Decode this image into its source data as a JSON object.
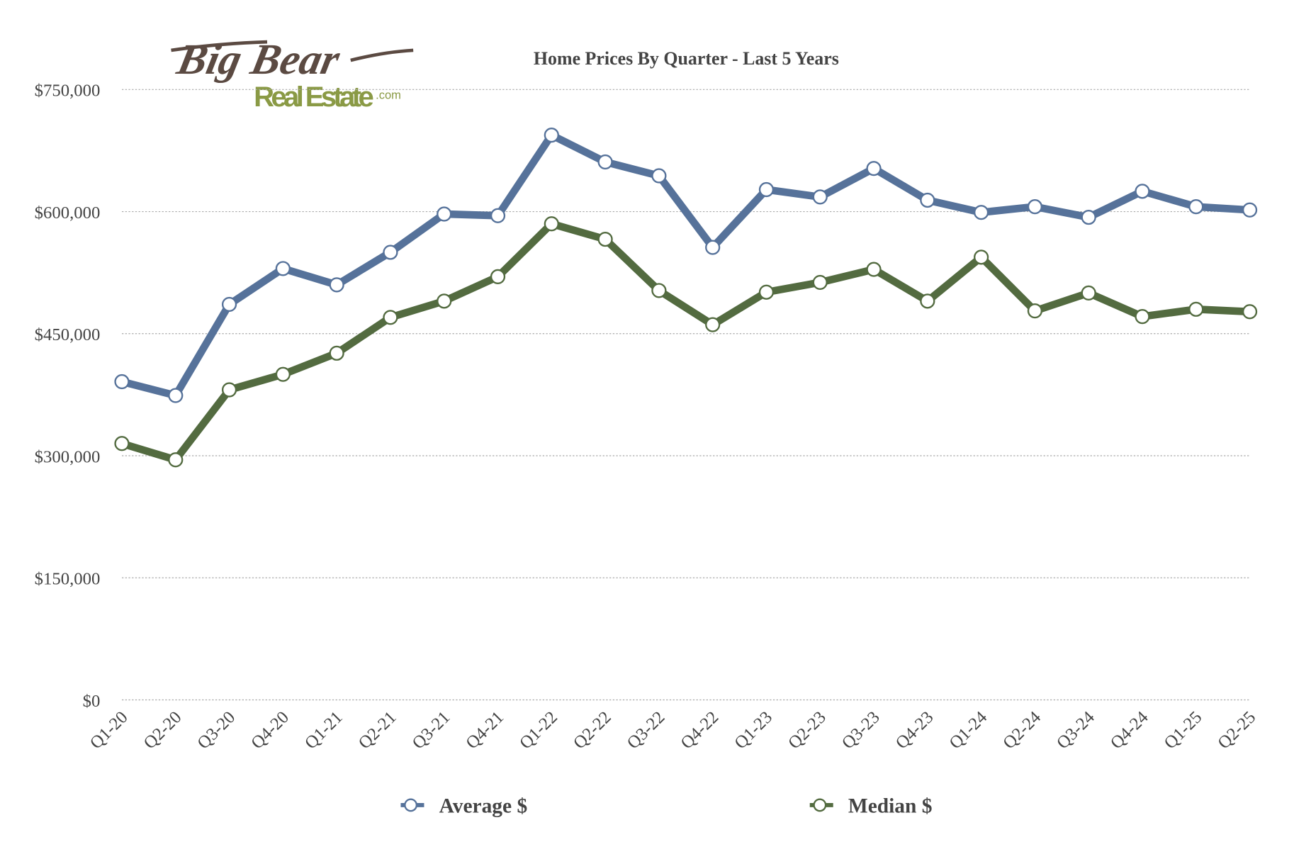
{
  "logo": {
    "line1": "Big Bear",
    "line2": "Real Estate",
    "suffix": ".com"
  },
  "chart_data": {
    "type": "line",
    "title": "Home Prices By Quarter - Last 5 Years",
    "xlabel": "",
    "ylabel": "",
    "ylim": [
      0,
      750000
    ],
    "yticks": [
      0,
      150000,
      300000,
      450000,
      600000,
      750000
    ],
    "ytick_labels": [
      "$0",
      "$150,000",
      "$300,000",
      "$450,000",
      "$600,000",
      "$750,000"
    ],
    "grid": true,
    "legend_position": "bottom",
    "categories": [
      "Q1-20",
      "Q2-20",
      "Q3-20",
      "Q4-20",
      "Q1-21",
      "Q2-21",
      "Q3-21",
      "Q4-21",
      "Q1-22",
      "Q2-22",
      "Q3-22",
      "Q4-22",
      "Q1-23",
      "Q2-23",
      "Q3-23",
      "Q4-23",
      "Q1-24",
      "Q2-24",
      "Q3-24",
      "Q4-24",
      "Q1-25",
      "Q2-25"
    ],
    "series": [
      {
        "name": "Average $",
        "color": "#56729a",
        "values": [
          391000,
          374000,
          486000,
          530000,
          510000,
          550000,
          597000,
          595000,
          694000,
          661000,
          644000,
          556000,
          627000,
          618000,
          653000,
          614000,
          599000,
          606000,
          593000,
          625000,
          606000,
          602000
        ]
      },
      {
        "name": "Median $",
        "color": "#536b40",
        "values": [
          315000,
          295000,
          381000,
          400000,
          426000,
          470000,
          490000,
          520000,
          585000,
          566000,
          503000,
          461000,
          501000,
          513000,
          529000,
          490000,
          544000,
          478000,
          500000,
          471000,
          480000,
          477000
        ]
      }
    ]
  }
}
